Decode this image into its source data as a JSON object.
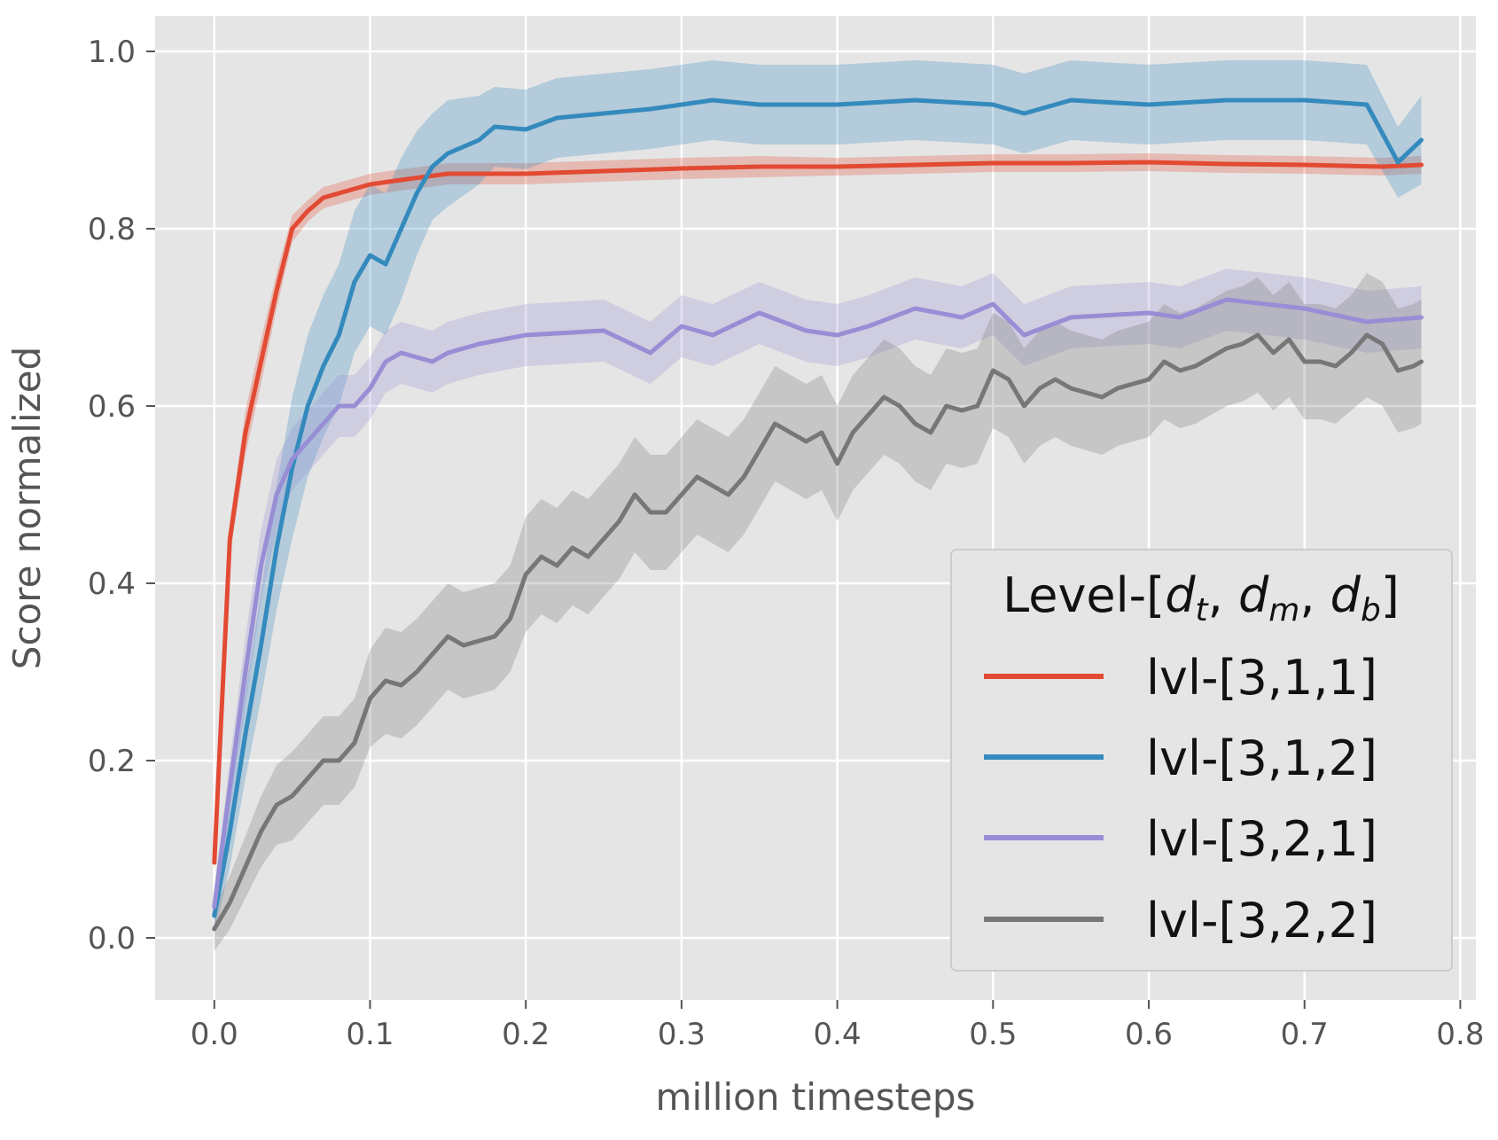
{
  "chart_data": {
    "type": "line",
    "title": "",
    "xlabel": "million timesteps",
    "ylabel": "Score normalized",
    "xlim": [
      -0.038,
      0.81
    ],
    "ylim": [
      -0.07,
      1.04
    ],
    "xticks": [
      0.0,
      0.1,
      0.2,
      0.3,
      0.4,
      0.5,
      0.6,
      0.7,
      0.8
    ],
    "xtick_labels": [
      "0.0",
      "0.1",
      "0.2",
      "0.3",
      "0.4",
      "0.5",
      "0.6",
      "0.7",
      "0.8"
    ],
    "yticks": [
      0.0,
      0.2,
      0.4,
      0.6,
      0.8,
      1.0
    ],
    "ytick_labels": [
      "0.0",
      "0.2",
      "0.4",
      "0.6",
      "0.8",
      "1.0"
    ],
    "grid": true,
    "legend": {
      "title_prefix": "Level-[",
      "title_suffix": "]",
      "title_vars": [
        "d",
        "t",
        "d",
        "m",
        "d",
        "b"
      ],
      "location": "lower-right"
    },
    "series": [
      {
        "name": "lvl-[3,1,1]",
        "color": "#e24a33",
        "x": [
          0.0,
          0.01,
          0.02,
          0.03,
          0.04,
          0.05,
          0.06,
          0.07,
          0.08,
          0.09,
          0.1,
          0.12,
          0.15,
          0.2,
          0.25,
          0.3,
          0.35,
          0.4,
          0.45,
          0.5,
          0.55,
          0.6,
          0.65,
          0.7,
          0.75,
          0.775
        ],
        "values": [
          0.085,
          0.45,
          0.57,
          0.65,
          0.73,
          0.8,
          0.82,
          0.835,
          0.84,
          0.845,
          0.85,
          0.855,
          0.862,
          0.862,
          0.865,
          0.868,
          0.87,
          0.87,
          0.872,
          0.874,
          0.874,
          0.875,
          0.873,
          0.872,
          0.87,
          0.872
        ],
        "band": [
          0.01,
          0.02,
          0.025,
          0.025,
          0.02,
          0.015,
          0.012,
          0.012,
          0.012,
          0.012,
          0.012,
          0.012,
          0.012,
          0.012,
          0.012,
          0.012,
          0.012,
          0.01,
          0.01,
          0.01,
          0.01,
          0.01,
          0.01,
          0.01,
          0.01,
          0.01
        ]
      },
      {
        "name": "lvl-[3,1,2]",
        "color": "#348abd",
        "x": [
          0.0,
          0.01,
          0.02,
          0.03,
          0.04,
          0.05,
          0.06,
          0.07,
          0.08,
          0.09,
          0.1,
          0.11,
          0.12,
          0.13,
          0.14,
          0.15,
          0.17,
          0.18,
          0.2,
          0.22,
          0.25,
          0.28,
          0.3,
          0.32,
          0.35,
          0.4,
          0.45,
          0.5,
          0.52,
          0.55,
          0.6,
          0.65,
          0.7,
          0.74,
          0.76,
          0.775
        ],
        "values": [
          0.025,
          0.12,
          0.23,
          0.33,
          0.44,
          0.53,
          0.6,
          0.645,
          0.68,
          0.74,
          0.77,
          0.76,
          0.8,
          0.84,
          0.87,
          0.885,
          0.9,
          0.915,
          0.912,
          0.925,
          0.93,
          0.935,
          0.94,
          0.945,
          0.94,
          0.94,
          0.945,
          0.94,
          0.93,
          0.945,
          0.94,
          0.945,
          0.945,
          0.94,
          0.875,
          0.9
        ],
        "band": [
          0.02,
          0.04,
          0.05,
          0.06,
          0.07,
          0.08,
          0.08,
          0.08,
          0.08,
          0.08,
          0.08,
          0.08,
          0.08,
          0.07,
          0.06,
          0.06,
          0.05,
          0.045,
          0.045,
          0.045,
          0.045,
          0.045,
          0.045,
          0.045,
          0.045,
          0.045,
          0.045,
          0.045,
          0.045,
          0.045,
          0.045,
          0.045,
          0.045,
          0.045,
          0.04,
          0.05
        ]
      },
      {
        "name": "lvl-[3,2,1]",
        "color": "#988ed5",
        "x": [
          0.0,
          0.01,
          0.02,
          0.03,
          0.04,
          0.05,
          0.06,
          0.07,
          0.08,
          0.09,
          0.1,
          0.11,
          0.12,
          0.14,
          0.15,
          0.17,
          0.2,
          0.25,
          0.28,
          0.3,
          0.32,
          0.35,
          0.38,
          0.4,
          0.42,
          0.45,
          0.48,
          0.5,
          0.52,
          0.55,
          0.6,
          0.62,
          0.65,
          0.7,
          0.74,
          0.775
        ],
        "values": [
          0.035,
          0.17,
          0.3,
          0.42,
          0.5,
          0.54,
          0.56,
          0.58,
          0.6,
          0.6,
          0.62,
          0.65,
          0.66,
          0.65,
          0.66,
          0.67,
          0.68,
          0.685,
          0.66,
          0.69,
          0.68,
          0.705,
          0.685,
          0.68,
          0.69,
          0.71,
          0.7,
          0.715,
          0.68,
          0.7,
          0.705,
          0.7,
          0.72,
          0.71,
          0.695,
          0.7
        ],
        "band": [
          0.02,
          0.03,
          0.04,
          0.04,
          0.04,
          0.035,
          0.035,
          0.035,
          0.035,
          0.035,
          0.035,
          0.035,
          0.035,
          0.035,
          0.035,
          0.035,
          0.035,
          0.035,
          0.035,
          0.035,
          0.035,
          0.035,
          0.035,
          0.035,
          0.035,
          0.035,
          0.035,
          0.035,
          0.035,
          0.035,
          0.035,
          0.035,
          0.035,
          0.035,
          0.035,
          0.035
        ]
      },
      {
        "name": "lvl-[3,2,2]",
        "color": "#777777",
        "x": [
          0.0,
          0.01,
          0.02,
          0.03,
          0.04,
          0.05,
          0.06,
          0.07,
          0.08,
          0.09,
          0.1,
          0.11,
          0.12,
          0.13,
          0.14,
          0.15,
          0.16,
          0.17,
          0.18,
          0.19,
          0.2,
          0.21,
          0.22,
          0.23,
          0.24,
          0.25,
          0.26,
          0.27,
          0.28,
          0.29,
          0.3,
          0.31,
          0.32,
          0.33,
          0.34,
          0.35,
          0.36,
          0.37,
          0.38,
          0.39,
          0.4,
          0.41,
          0.42,
          0.43,
          0.44,
          0.45,
          0.46,
          0.47,
          0.48,
          0.49,
          0.5,
          0.51,
          0.52,
          0.53,
          0.54,
          0.55,
          0.56,
          0.57,
          0.58,
          0.59,
          0.6,
          0.61,
          0.62,
          0.63,
          0.64,
          0.65,
          0.66,
          0.67,
          0.68,
          0.69,
          0.7,
          0.71,
          0.72,
          0.73,
          0.74,
          0.75,
          0.76,
          0.77,
          0.775
        ],
        "values": [
          0.01,
          0.04,
          0.08,
          0.12,
          0.15,
          0.16,
          0.18,
          0.2,
          0.2,
          0.22,
          0.27,
          0.29,
          0.285,
          0.3,
          0.32,
          0.34,
          0.33,
          0.335,
          0.34,
          0.36,
          0.41,
          0.43,
          0.42,
          0.44,
          0.43,
          0.45,
          0.47,
          0.5,
          0.48,
          0.48,
          0.5,
          0.52,
          0.51,
          0.5,
          0.52,
          0.55,
          0.58,
          0.57,
          0.56,
          0.57,
          0.535,
          0.57,
          0.59,
          0.61,
          0.6,
          0.58,
          0.57,
          0.6,
          0.595,
          0.6,
          0.64,
          0.63,
          0.6,
          0.62,
          0.63,
          0.62,
          0.615,
          0.61,
          0.62,
          0.625,
          0.63,
          0.65,
          0.64,
          0.645,
          0.655,
          0.665,
          0.67,
          0.68,
          0.66,
          0.675,
          0.65,
          0.65,
          0.645,
          0.66,
          0.68,
          0.67,
          0.64,
          0.645,
          0.65
        ],
        "band": [
          0.025,
          0.03,
          0.035,
          0.04,
          0.045,
          0.05,
          0.05,
          0.05,
          0.05,
          0.05,
          0.055,
          0.06,
          0.06,
          0.06,
          0.06,
          0.06,
          0.06,
          0.06,
          0.06,
          0.06,
          0.065,
          0.065,
          0.065,
          0.065,
          0.065,
          0.065,
          0.065,
          0.065,
          0.065,
          0.065,
          0.065,
          0.065,
          0.065,
          0.065,
          0.065,
          0.065,
          0.065,
          0.065,
          0.065,
          0.065,
          0.065,
          0.065,
          0.065,
          0.065,
          0.065,
          0.065,
          0.065,
          0.065,
          0.065,
          0.065,
          0.065,
          0.065,
          0.065,
          0.065,
          0.065,
          0.065,
          0.065,
          0.065,
          0.065,
          0.065,
          0.065,
          0.065,
          0.065,
          0.065,
          0.065,
          0.065,
          0.065,
          0.065,
          0.065,
          0.065,
          0.065,
          0.065,
          0.065,
          0.065,
          0.07,
          0.07,
          0.07,
          0.07,
          0.07
        ]
      }
    ]
  }
}
